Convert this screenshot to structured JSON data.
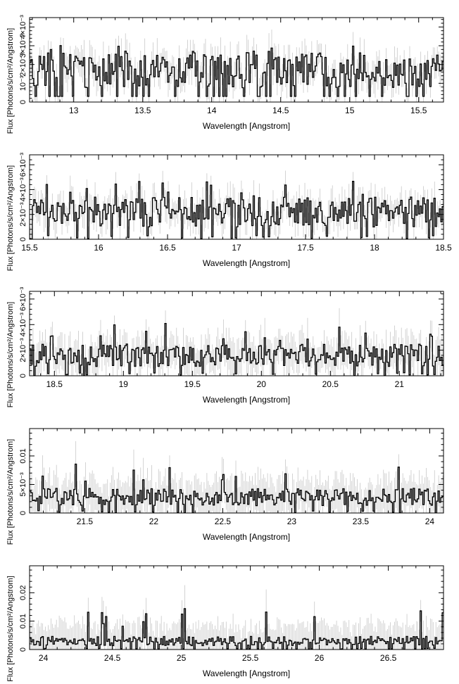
{
  "figure": {
    "xlabel": "Wavelength [Angstrom]",
    "ylabel": "Flux [Photons/s/cm²/Angstrom]"
  },
  "chart_data": [
    {
      "type": "line",
      "panel": 1,
      "xlim": [
        12.68,
        15.68
      ],
      "ylim": [
        0,
        0.0045
      ],
      "x_ticks": [
        13,
        13.5,
        14,
        14.5,
        15,
        15.5
      ],
      "x_tick_labels": [
        "13",
        "13.5",
        "14",
        "14.5",
        "15",
        "15.5"
      ],
      "y_ticks": [
        0,
        0.001,
        0.002,
        0.003,
        0.004
      ],
      "y_tick_labels": [
        "0",
        "10⁻³",
        "2×10⁻³",
        "3×10⁻³",
        "4×10⁻³"
      ],
      "xlabel": "Wavelength [Angstrom]",
      "ylabel": "Flux [Photons/s/cm²/Angstrom]",
      "series": [
        {
          "style": "step-with-errorbars",
          "color": "#000000",
          "x_range": [
            12.68,
            15.68
          ],
          "bin_width": 0.01,
          "typical_flux": 0.0017,
          "min_flux": 0.0003,
          "max_flux": 0.0032,
          "typical_error": 0.0007
        }
      ]
    },
    {
      "type": "line",
      "panel": 2,
      "xlim": [
        15.5,
        18.5
      ],
      "ylim": [
        0,
        0.0068
      ],
      "x_ticks": [
        15.5,
        16,
        16.5,
        17,
        17.5,
        18,
        18.5
      ],
      "x_tick_labels": [
        "15.5",
        "16",
        "16.5",
        "17",
        "17.5",
        "18",
        "18.5"
      ],
      "y_ticks": [
        0,
        0.002,
        0.004,
        0.006
      ],
      "y_tick_labels": [
        "0",
        "2×10⁻³",
        "4×10⁻³",
        "6×10⁻³"
      ],
      "xlabel": "Wavelength [Angstrom]",
      "ylabel": "Flux [Photons/s/cm²/Angstrom]",
      "series": [
        {
          "style": "step-with-errorbars",
          "color": "#000000",
          "x_range": [
            15.5,
            18.5
          ],
          "bin_width": 0.01,
          "typical_flux": 0.0022,
          "min_flux": 0.0,
          "max_flux": 0.0047,
          "typical_error": 0.001
        }
      ]
    },
    {
      "type": "line",
      "panel": 3,
      "xlim": [
        18.32,
        21.32
      ],
      "ylim": [
        0,
        0.0066
      ],
      "x_ticks": [
        18.5,
        19,
        19.5,
        20,
        20.5,
        21
      ],
      "x_tick_labels": [
        "18.5",
        "19",
        "19.5",
        "20",
        "20.5",
        "21"
      ],
      "y_ticks": [
        0,
        0.002,
        0.004,
        0.006
      ],
      "y_tick_labels": [
        "0",
        "2×10⁻³",
        "4×10⁻³",
        "6×10⁻³"
      ],
      "xlabel": "Wavelength [Angstrom]",
      "ylabel": "Flux [Photons/s/cm²/Angstrom]",
      "series": [
        {
          "style": "step-with-errorbars",
          "color": "#000000",
          "x_range": [
            18.32,
            21.32
          ],
          "bin_width": 0.01,
          "typical_flux": 0.0016,
          "min_flux": 0.0,
          "max_flux": 0.0043,
          "typical_error": 0.0012
        }
      ]
    },
    {
      "type": "line",
      "panel": 4,
      "xlim": [
        21.1,
        24.1
      ],
      "ylim": [
        0,
        0.0148
      ],
      "x_ticks": [
        21.5,
        22,
        22.5,
        23,
        23.5,
        24
      ],
      "x_tick_labels": [
        "21.5",
        "22",
        "22.5",
        "23",
        "23.5",
        "24"
      ],
      "y_ticks": [
        0,
        0.005,
        0.01
      ],
      "y_tick_labels": [
        "0",
        "5×10⁻³",
        "0.01"
      ],
      "xlabel": "Wavelength [Angstrom]",
      "ylabel": "Flux [Photons/s/cm²/Angstrom]",
      "series": [
        {
          "style": "step-with-errorbars",
          "color": "#000000",
          "x_range": [
            21.1,
            24.1
          ],
          "bin_width": 0.01,
          "typical_flux": 0.0028,
          "min_flux": 0.0,
          "max_flux": 0.0092,
          "typical_error": 0.003
        }
      ]
    },
    {
      "type": "line",
      "panel": 5,
      "xlim": [
        23.9,
        26.9
      ],
      "ylim": [
        0,
        0.0295
      ],
      "x_ticks": [
        24,
        24.5,
        25,
        25.5,
        26,
        26.5
      ],
      "x_tick_labels": [
        "24",
        "24.5",
        "25",
        "25.5",
        "26",
        "26.5"
      ],
      "y_ticks": [
        0,
        0.01,
        0.02
      ],
      "y_tick_labels": [
        "0",
        "0.01",
        "0.02"
      ],
      "xlabel": "Wavelength [Angstrom]",
      "ylabel": "Flux [Photons/s/cm²/Angstrom]",
      "series": [
        {
          "style": "step-with-errorbars",
          "color": "#000000",
          "x_range": [
            23.9,
            26.9
          ],
          "bin_width": 0.01,
          "typical_flux": 0.003,
          "min_flux": 0.0,
          "max_flux": 0.016,
          "typical_error": 0.006
        }
      ]
    }
  ]
}
